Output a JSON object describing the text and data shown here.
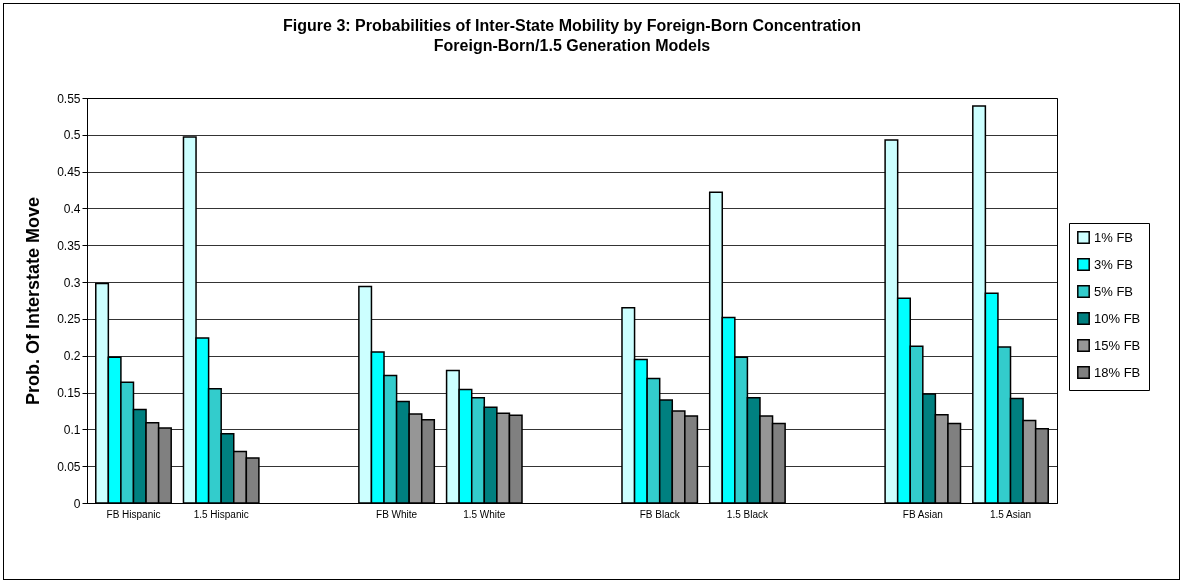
{
  "chart_data": {
    "type": "bar",
    "title": "Figure 3: Probabilities of Inter-State Mobility by Foreign-Born Concentration",
    "subtitle": "Foreign-Born/1.5 Generation Models",
    "ylabel": "Prob. Of Interstate Move",
    "categories": [
      "FB Hispanic",
      "1.5 Hispanic",
      null,
      "FB White",
      "1.5 White",
      null,
      "FB Black",
      "1.5 Black",
      null,
      "FB Asian",
      "1.5 Asian"
    ],
    "series": [
      {
        "name": "1% FB",
        "color": "#ccffff",
        "values": [
          0.298,
          0.497,
          null,
          0.294,
          0.18,
          null,
          0.265,
          0.422,
          null,
          0.493,
          0.539
        ]
      },
      {
        "name": "3% FB",
        "color": "#00ffff",
        "values": [
          0.198,
          0.224,
          null,
          0.205,
          0.154,
          null,
          0.195,
          0.252,
          null,
          0.278,
          0.285
        ]
      },
      {
        "name": "5% FB",
        "color": "#33cccc",
        "values": [
          0.164,
          0.155,
          null,
          0.173,
          0.143,
          null,
          0.169,
          0.198,
          null,
          0.213,
          0.212
        ]
      },
      {
        "name": "10% FB",
        "color": "#008080",
        "values": [
          0.127,
          0.094,
          null,
          0.138,
          0.13,
          null,
          0.14,
          0.143,
          null,
          0.148,
          0.142
        ]
      },
      {
        "name": "15% FB",
        "color": "#969696",
        "values": [
          0.109,
          0.07,
          null,
          0.121,
          0.122,
          null,
          0.125,
          0.118,
          null,
          0.12,
          0.112
        ]
      },
      {
        "name": "18% FB",
        "color": "#808080",
        "values": [
          0.102,
          0.061,
          null,
          0.113,
          0.119,
          null,
          0.118,
          0.108,
          null,
          0.108,
          0.101
        ]
      }
    ],
    "ylim": [
      0,
      0.55
    ],
    "yticks": [
      0,
      0.05,
      0.1,
      0.15,
      0.2,
      0.25,
      0.3,
      0.35,
      0.4,
      0.45,
      0.5,
      0.55
    ],
    "grid": "y",
    "legend": "right"
  }
}
